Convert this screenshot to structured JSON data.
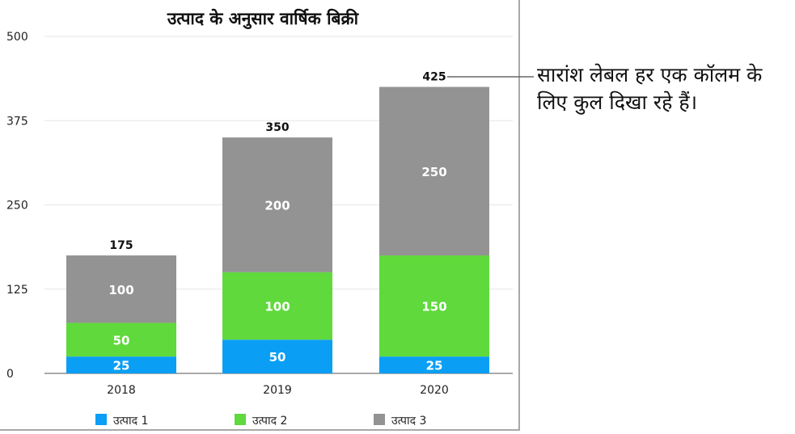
{
  "chart_data": {
    "type": "bar",
    "stacked": true,
    "title": "उत्पाद के अनुसार वार्षिक बिक्री",
    "categories": [
      "2018",
      "2019",
      "2020"
    ],
    "series": [
      {
        "name": "उत्पाद 1",
        "values": [
          25,
          50,
          25
        ],
        "color": "#0a9ff5"
      },
      {
        "name": "उत्पाद 2",
        "values": [
          50,
          100,
          150
        ],
        "color": "#5fd93c"
      },
      {
        "name": "उत्पाद 3",
        "values": [
          100,
          200,
          250
        ],
        "color": "#939393"
      }
    ],
    "totals": [
      175,
      350,
      425
    ],
    "ylim": [
      0,
      500
    ],
    "yticks": [
      0,
      125,
      250,
      375,
      500
    ],
    "grid": true,
    "legend": "bottom",
    "xlabel": "",
    "ylabel": ""
  },
  "annotation": {
    "text": "सारांश लेबल हर एक कॉलम के लिए कुल दिखा रहे हैं।"
  }
}
